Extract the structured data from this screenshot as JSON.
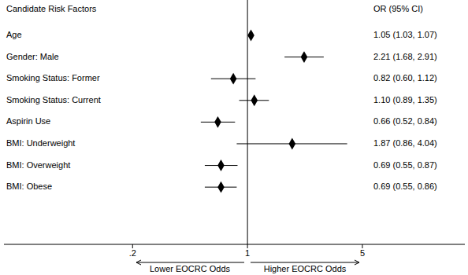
{
  "chart_data": {
    "type": "forest",
    "label_header": "Candidate Risk Factors",
    "value_header": "OR (95% CI)",
    "categories": [
      "Age",
      "Gender: Male",
      "Smoking Status: Former",
      "Smoking Status: Current",
      "Aspirin Use",
      "BMI: Underweight",
      "BMI: Overweight",
      "BMI: Obese"
    ],
    "values": [
      1.05,
      2.21,
      0.82,
      1.1,
      0.66,
      1.87,
      0.69,
      0.69
    ],
    "ci_low": [
      1.03,
      1.68,
      0.6,
      0.89,
      0.52,
      0.86,
      0.55,
      0.55
    ],
    "ci_high": [
      1.07,
      2.91,
      1.12,
      1.35,
      0.84,
      4.04,
      0.87,
      0.86
    ],
    "value_labels": [
      "1.05 (1.03, 1.07)",
      "2.21 (1.68, 2.91)",
      "0.82 (0.60, 1.12)",
      "1.10 (0.89, 1.35)",
      "0.66 (0.52, 0.84)",
      "1.87 (0.86, 4.04)",
      "0.69 (0.55, 0.87)",
      "0.69 (0.55, 0.86)"
    ],
    "reference": 1,
    "log": "x",
    "xlim": [
      0.033,
      21
    ],
    "xticks": [
      {
        "value": 0.2,
        "label": ".2"
      },
      1,
      5
    ],
    "marker": "diamond",
    "color": "#000000",
    "annotations": [
      "Lower EOCRC Odds",
      "Higher EOCRC Odds"
    ]
  }
}
